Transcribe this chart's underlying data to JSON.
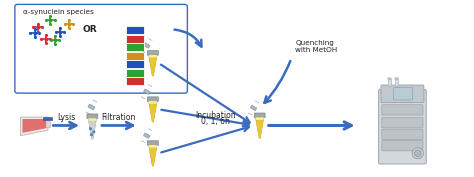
{
  "bg_color": "#ffffff",
  "arrow_color": "#3a6bbf",
  "box_color": "#3a6bbf",
  "text_color": "#222222",
  "tube_yellow": "#e8c832",
  "tube_yellow2": "#f0d840",
  "tube_gray_body": "#c8ccd0",
  "tube_gray_cap": "#a0a8b0",
  "filter_color": "#b0b8c4",
  "lysis_label": "Lysis",
  "filtration_label": "Filtration",
  "incubation_label": "Incubation\n0, 1, 6h",
  "quenching_label": "Quenching\nwith MetOH",
  "synuclein_label": "α-synuclein species",
  "or_label": "OR",
  "figsize": [
    4.74,
    1.77
  ],
  "dpi": 100,
  "xlim": [
    0,
    10
  ],
  "ylim": [
    0,
    3.8
  ]
}
